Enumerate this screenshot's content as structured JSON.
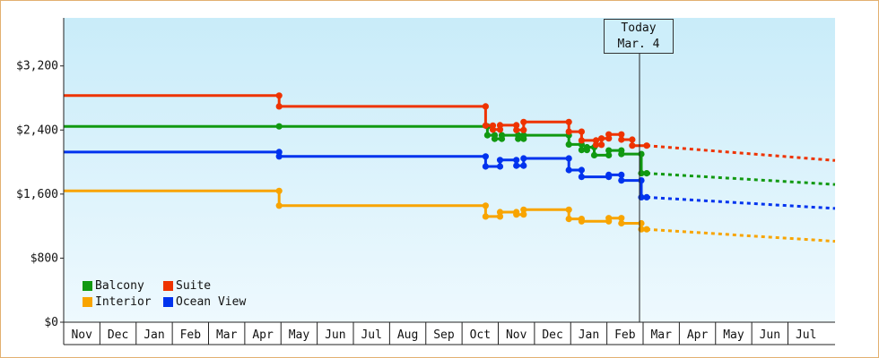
{
  "chart_data": {
    "type": "line",
    "title": "",
    "xlabel": "",
    "ylabel": "",
    "ylim": [
      0,
      3800
    ],
    "y_ticks": [
      {
        "value": 0,
        "label": "$0"
      },
      {
        "value": 800,
        "label": "$800"
      },
      {
        "value": 1600,
        "label": "$1,600"
      },
      {
        "value": 2400,
        "label": "$2,400"
      },
      {
        "value": 3200,
        "label": "$3,200"
      }
    ],
    "x_month_labels": [
      "Nov",
      "Dec",
      "Jan",
      "Feb",
      "Mar",
      "Apr",
      "May",
      "Jun",
      "Jul",
      "Aug",
      "Sep",
      "Oct",
      "Nov",
      "Dec",
      "Jan",
      "Feb",
      "Mar",
      "Apr",
      "May",
      "Jun",
      "Jul"
    ],
    "x_range_months": [
      0,
      21.3
    ],
    "grid": false,
    "legend_position": "bottom-left",
    "today_marker": {
      "line1": "Today",
      "line2": "Mar. 4",
      "x": 16.1
    },
    "series": [
      {
        "name": "Balcony",
        "color": "#119911",
        "points": [
          [
            0,
            2445
          ],
          [
            5.95,
            2445
          ],
          [
            11.7,
            2445
          ],
          [
            11.7,
            2335
          ],
          [
            11.9,
            2335
          ],
          [
            11.9,
            2290
          ],
          [
            12.1,
            2290
          ],
          [
            12.1,
            2335
          ],
          [
            12.55,
            2335
          ],
          [
            12.55,
            2290
          ],
          [
            12.7,
            2290
          ],
          [
            12.7,
            2335
          ],
          [
            13.95,
            2335
          ],
          [
            13.95,
            2220
          ],
          [
            14.3,
            2220
          ],
          [
            14.3,
            2150
          ],
          [
            14.45,
            2150
          ],
          [
            14.45,
            2185
          ],
          [
            14.65,
            2185
          ],
          [
            14.65,
            2085
          ],
          [
            15.05,
            2085
          ],
          [
            15.05,
            2145
          ],
          [
            15.4,
            2145
          ],
          [
            15.4,
            2100
          ],
          [
            15.95,
            2100
          ],
          [
            15.95,
            1860
          ],
          [
            16.1,
            1860
          ]
        ],
        "forecast": [
          [
            16.1,
            1860
          ],
          [
            21.3,
            1720
          ]
        ]
      },
      {
        "name": "Suite",
        "color": "#ee3300",
        "points": [
          [
            0,
            2830
          ],
          [
            5.95,
            2830
          ],
          [
            5.95,
            2695
          ],
          [
            11.65,
            2695
          ],
          [
            11.65,
            2455
          ],
          [
            11.85,
            2455
          ],
          [
            11.85,
            2405
          ],
          [
            12.05,
            2405
          ],
          [
            12.05,
            2460
          ],
          [
            12.5,
            2460
          ],
          [
            12.5,
            2400
          ],
          [
            12.7,
            2400
          ],
          [
            12.7,
            2500
          ],
          [
            13.95,
            2500
          ],
          [
            13.95,
            2380
          ],
          [
            14.3,
            2380
          ],
          [
            14.3,
            2270
          ],
          [
            14.7,
            2270
          ],
          [
            14.7,
            2215
          ],
          [
            14.85,
            2215
          ],
          [
            14.85,
            2295
          ],
          [
            15.05,
            2295
          ],
          [
            15.05,
            2345
          ],
          [
            15.4,
            2345
          ],
          [
            15.4,
            2280
          ],
          [
            15.7,
            2280
          ],
          [
            15.7,
            2205
          ],
          [
            16.1,
            2205
          ]
        ],
        "forecast": [
          [
            16.1,
            2205
          ],
          [
            21.3,
            2020
          ]
        ]
      },
      {
        "name": "Interior",
        "color": "#f8a400",
        "points": [
          [
            0,
            1640
          ],
          [
            5.95,
            1640
          ],
          [
            5.95,
            1455
          ],
          [
            11.65,
            1455
          ],
          [
            11.65,
            1320
          ],
          [
            12.05,
            1320
          ],
          [
            12.05,
            1375
          ],
          [
            12.5,
            1375
          ],
          [
            12.5,
            1345
          ],
          [
            12.7,
            1345
          ],
          [
            12.7,
            1405
          ],
          [
            13.95,
            1405
          ],
          [
            13.95,
            1290
          ],
          [
            14.3,
            1290
          ],
          [
            14.3,
            1260
          ],
          [
            15.05,
            1260
          ],
          [
            15.05,
            1300
          ],
          [
            15.4,
            1300
          ],
          [
            15.4,
            1235
          ],
          [
            15.95,
            1235
          ],
          [
            15.95,
            1160
          ],
          [
            16.1,
            1160
          ]
        ],
        "forecast": [
          [
            16.1,
            1160
          ],
          [
            21.3,
            1010
          ]
        ]
      },
      {
        "name": "Ocean View",
        "color": "#0033ee",
        "points": [
          [
            0,
            2125
          ],
          [
            5.95,
            2125
          ],
          [
            5.95,
            2070
          ],
          [
            11.65,
            2070
          ],
          [
            11.65,
            1945
          ],
          [
            12.05,
            1945
          ],
          [
            12.05,
            2025
          ],
          [
            12.5,
            2025
          ],
          [
            12.5,
            1955
          ],
          [
            12.7,
            1955
          ],
          [
            12.7,
            2045
          ],
          [
            13.95,
            2045
          ],
          [
            13.95,
            1900
          ],
          [
            14.3,
            1900
          ],
          [
            14.3,
            1815
          ],
          [
            15.05,
            1815
          ],
          [
            15.05,
            1840
          ],
          [
            15.4,
            1840
          ],
          [
            15.4,
            1770
          ],
          [
            15.95,
            1770
          ],
          [
            15.95,
            1560
          ],
          [
            16.1,
            1560
          ]
        ],
        "forecast": [
          [
            16.1,
            1560
          ],
          [
            21.3,
            1420
          ]
        ]
      }
    ]
  }
}
